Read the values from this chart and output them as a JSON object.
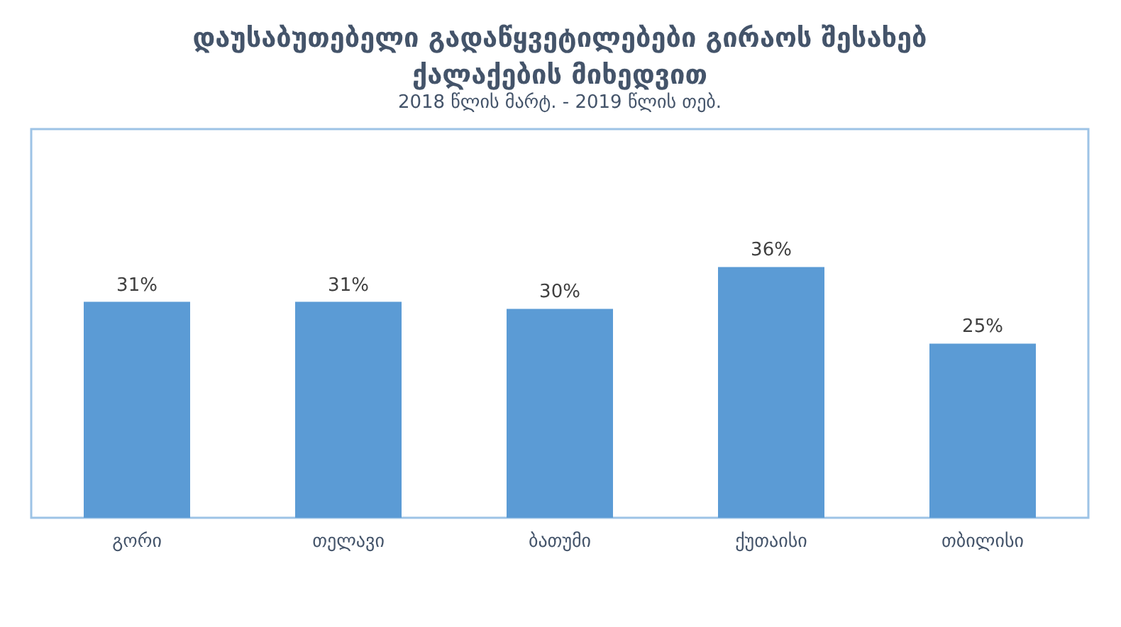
{
  "chart_data": {
    "type": "bar",
    "title": "დაუსაბუთებელი გადაწყვეტილებები გირაოს შესახებ\nქალაქების მიხედვით",
    "subtitle": "2018 წლის მარტ. - 2019 წლის თებ.",
    "categories": [
      "გორი",
      "თელავი",
      "ბათუმი",
      "ქუთაისი",
      "თბილისი"
    ],
    "values": [
      31,
      31,
      30,
      36,
      25
    ],
    "value_labels": [
      "31%",
      "31%",
      "30%",
      "36%",
      "25%"
    ],
    "color": "#5b9bd5",
    "grid": false
  }
}
